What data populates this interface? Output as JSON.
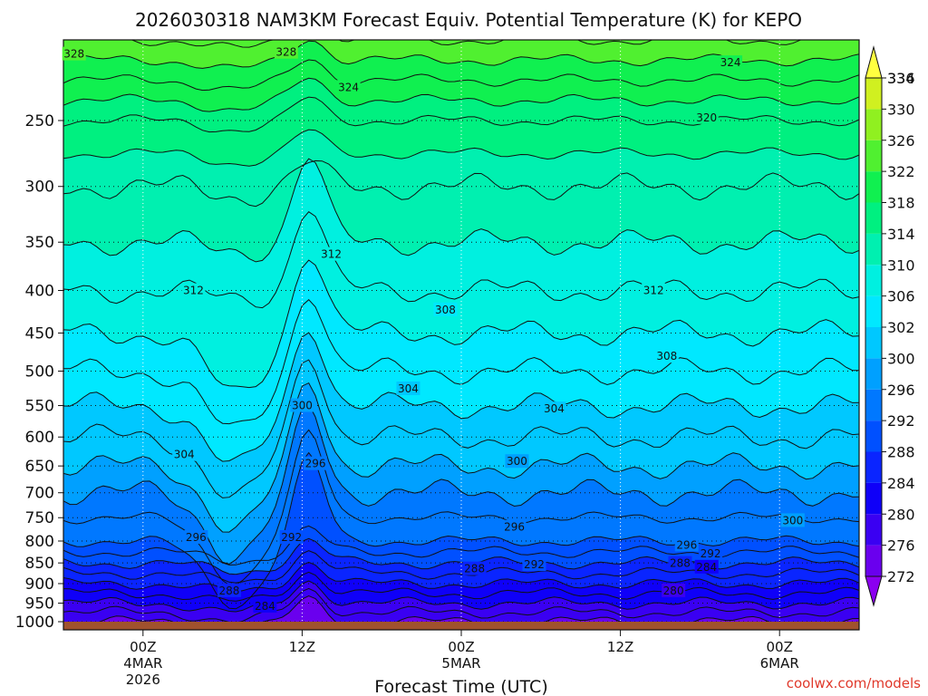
{
  "chart_data": {
    "type": "heatmap",
    "title": "2026030318 NAM3KM Forecast Equiv. Potential Temperature (K) for KEPO",
    "xlabel": "Forecast Time (UTC)",
    "ylabel": "",
    "x_ticks": [
      {
        "hours": -6,
        "label": "00Z",
        "sub1": "4MAR",
        "sub2": "2026"
      },
      {
        "hours": 6,
        "label": "12Z",
        "sub1": "",
        "sub2": ""
      },
      {
        "hours": 18,
        "label": "00Z",
        "sub1": "5MAR",
        "sub2": ""
      },
      {
        "hours": 30,
        "label": "12Z",
        "sub1": "",
        "sub2": ""
      },
      {
        "hours": 42,
        "label": "00Z",
        "sub1": "6MAR",
        "sub2": ""
      }
    ],
    "xlim": [
      -12,
      48
    ],
    "y_ticks": [
      250,
      300,
      350,
      400,
      450,
      500,
      550,
      600,
      650,
      700,
      750,
      800,
      850,
      900,
      950,
      1000
    ],
    "ylim_hpa": [
      200,
      1000
    ],
    "colorbar": {
      "levels": [
        272,
        276,
        280,
        284,
        288,
        292,
        296,
        300,
        302,
        306,
        310,
        314,
        318,
        322,
        326,
        330,
        334,
        336
      ],
      "colors": [
        "#8b00f0",
        "#6a00ee",
        "#3a00f2",
        "#0f00f8",
        "#0a25ff",
        "#0050ff",
        "#0078ff",
        "#00a0ff",
        "#00c8ff",
        "#00e8ff",
        "#00f0e0",
        "#00f0b0",
        "#00f080",
        "#10f050",
        "#50f030",
        "#90f020",
        "#d0f020",
        "#ffff40"
      ]
    },
    "profile_levels_hpa": [
      1000,
      950,
      900,
      850,
      800,
      750,
      700,
      650,
      600,
      550,
      500,
      450,
      400,
      350,
      300,
      250,
      200
    ],
    "profile_theta_e": [
      280,
      284,
      288,
      292,
      296,
      298,
      300,
      302,
      304,
      306,
      308,
      310,
      312,
      314,
      316,
      320,
      328
    ],
    "contour_labels": [
      {
        "text": "328",
        "t": -11.2,
        "p": 208
      },
      {
        "text": "328",
        "t": 4.8,
        "p": 207
      },
      {
        "text": "324",
        "t": 9.5,
        "p": 228
      },
      {
        "text": "324",
        "t": 38.3,
        "p": 213
      },
      {
        "text": "320",
        "t": 36.5,
        "p": 248
      },
      {
        "text": "312",
        "t": -2.2,
        "p": 400
      },
      {
        "text": "312",
        "t": 8.2,
        "p": 362
      },
      {
        "text": "312",
        "t": 32.5,
        "p": 400
      },
      {
        "text": "308",
        "t": 16.8,
        "p": 422
      },
      {
        "text": "308",
        "t": 33.5,
        "p": 480
      },
      {
        "text": "304",
        "t": 14.0,
        "p": 525
      },
      {
        "text": "304",
        "t": 25.0,
        "p": 555
      },
      {
        "text": "304",
        "t": -2.9,
        "p": 630
      },
      {
        "text": "300",
        "t": 6.0,
        "p": 550
      },
      {
        "text": "300",
        "t": 22.2,
        "p": 642
      },
      {
        "text": "300",
        "t": 43.0,
        "p": 756
      },
      {
        "text": "296",
        "t": 7.0,
        "p": 646
      },
      {
        "text": "296",
        "t": -2.0,
        "p": 792
      },
      {
        "text": "296",
        "t": 22.0,
        "p": 770
      },
      {
        "text": "296",
        "t": 35.0,
        "p": 809
      },
      {
        "text": "292",
        "t": 5.2,
        "p": 792
      },
      {
        "text": "292",
        "t": 23.5,
        "p": 854
      },
      {
        "text": "292",
        "t": 36.8,
        "p": 829
      },
      {
        "text": "288",
        "t": 19.0,
        "p": 864
      },
      {
        "text": "288",
        "t": 34.5,
        "p": 851
      },
      {
        "text": "284",
        "t": 36.5,
        "p": 860
      },
      {
        "text": "288",
        "t": 0.5,
        "p": 918
      },
      {
        "text": "284",
        "t": 3.2,
        "p": 958
      },
      {
        "text": "280",
        "t": 34.0,
        "p": 918
      }
    ],
    "credit": "coolwx.com/models"
  }
}
